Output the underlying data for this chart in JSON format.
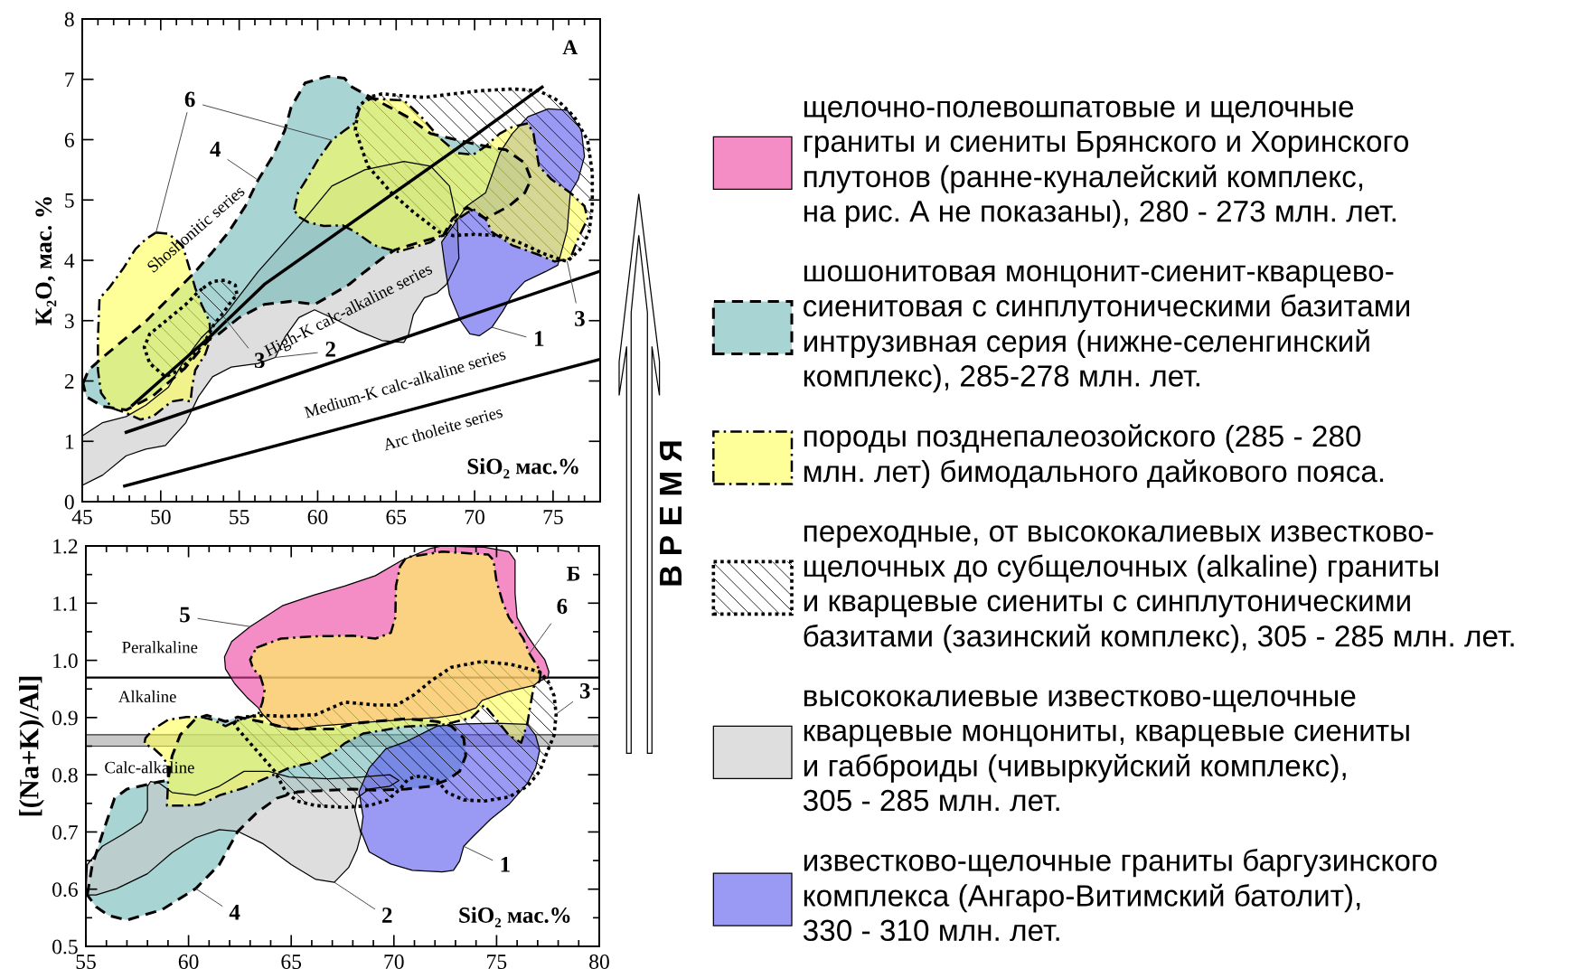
{
  "chart_data": [
    {
      "type": "area",
      "xlabel": "SiO₂ мас.%",
      "ylabel": "K₂O, мас. %",
      "xlim": [
        45,
        78
      ],
      "ylim": [
        0,
        8
      ],
      "xticks": [
        45,
        {
          "value": 46,
          "label": null
        },
        {
          "value": 47,
          "label": null
        },
        {
          "value": 48,
          "label": null
        },
        {
          "value": 49,
          "label": null
        },
        50,
        {
          "value": 51,
          "label": null
        },
        {
          "value": 52,
          "label": null
        },
        {
          "value": 53,
          "label": null
        },
        {
          "value": 54,
          "label": null
        },
        55,
        {
          "value": 56,
          "label": null
        },
        {
          "value": 57,
          "label": null
        },
        {
          "value": 58,
          "label": null
        },
        {
          "value": 59,
          "label": null
        },
        60,
        {
          "value": 61,
          "label": null
        },
        {
          "value": 62,
          "label": null
        },
        {
          "value": 63,
          "label": null
        },
        {
          "value": 64,
          "label": null
        },
        65,
        {
          "value": 66,
          "label": null
        },
        {
          "value": 67,
          "label": null
        },
        {
          "value": 68,
          "label": null
        },
        {
          "value": 69,
          "label": null
        },
        70,
        {
          "value": 71,
          "label": null
        },
        {
          "value": 72,
          "label": null
        },
        {
          "value": 73,
          "label": null
        },
        {
          "value": 74,
          "label": null
        },
        75,
        {
          "value": 76,
          "label": null
        },
        {
          "value": 77,
          "label": null
        }
      ],
      "yticks": [
        0,
        1,
        2,
        3,
        4,
        5,
        6,
        7,
        8
      ],
      "series": [
        {
          "color": "#dedede",
          "line_style": "solid",
          "x": [
            45,
            46.3,
            47.8,
            49.05,
            50.3,
            51.6,
            52.4,
            53.3,
            54.5,
            56.2,
            57.3,
            57.9,
            58.8,
            59.8,
            61.3,
            62.6,
            64.1,
            65.5,
            65.8,
            66.1,
            66.8,
            67.6,
            68.2,
            68.6,
            69.0,
            68.9,
            68.4,
            67.2,
            65.5,
            63.0,
            60.9,
            59.0,
            56.2,
            54.1,
            52.6,
            51.4,
            50.5,
            49.05,
            47.8,
            46.3,
            45
          ],
          "values": [
            0.27,
            0.44,
            0.76,
            0.87,
            0.93,
            1.31,
            1.74,
            2.07,
            2.23,
            2.29,
            2.39,
            2.72,
            3.05,
            3.18,
            3.0,
            2.83,
            2.67,
            2.64,
            2.78,
            3.1,
            3.38,
            3.46,
            3.6,
            3.81,
            4.03,
            4.63,
            5.23,
            5.56,
            5.64,
            5.5,
            5.23,
            4.63,
            3.81,
            3.1,
            2.72,
            2.3,
            1.9,
            1.6,
            1.41,
            1.31,
            1.09
          ]
        },
        {
          "type": "line",
          "color": "#000000",
          "line_style": "solid",
          "x": [
            48.2,
            53.2,
            56.6,
            69.5,
            74.3
          ],
          "values": [
            1.6,
            2.75,
            3.6,
            5.97,
            6.87
          ]
        },
        {
          "type": "line",
          "color": "#000000",
          "line_style": "solid",
          "x": [
            47.8,
            78
          ],
          "values": [
            1.15,
            3.82
          ]
        },
        {
          "type": "line",
          "color": "#000000",
          "line_style": "solid",
          "x": [
            47.7,
            78
          ],
          "values": [
            0.26,
            2.36
          ]
        },
        {
          "color": "#a8d4d4",
          "line_style": "dashed",
          "x": [
            45.05,
            45.4,
            46.3,
            49.1,
            52.2,
            53.3,
            54.3,
            55.4,
            56.2,
            57.1,
            57.9,
            58.3,
            59.2,
            60.65,
            61.7,
            62.2,
            63.2,
            64.5,
            65.7,
            67.2,
            69.3,
            70.7,
            72.0,
            73.2,
            73.6,
            73.2,
            72.2,
            70.7,
            69.5,
            68.6,
            68.0,
            66.5,
            64.9,
            64.1,
            63.0,
            62.0,
            60.9,
            59.8,
            58.3,
            56.6,
            55.0,
            53.7,
            53.2,
            51.5,
            49.5,
            47.8,
            46.3,
            45.25
          ],
          "values": [
            1.96,
            2.18,
            2.39,
            3.0,
            3.81,
            4.14,
            4.46,
            4.9,
            5.33,
            5.71,
            6.15,
            6.53,
            6.94,
            7.05,
            7.02,
            6.87,
            6.73,
            6.55,
            6.38,
            6.1,
            5.97,
            5.89,
            5.83,
            5.61,
            5.34,
            5.12,
            4.9,
            4.69,
            4.88,
            4.69,
            4.41,
            4.3,
            4.17,
            4.03,
            3.81,
            3.6,
            3.43,
            3.27,
            3.32,
            3.27,
            3.05,
            2.78,
            2.72,
            2.2,
            1.75,
            1.52,
            1.58,
            1.74
          ]
        },
        {
          "color": "#9a9af5",
          "line_style": "solid",
          "x": [
            72.4,
            73.4,
            74.7,
            75.9,
            76.8,
            77.0,
            76.6,
            76.1,
            75.9,
            75.3,
            74.5,
            73.2,
            72.4,
            71.8,
            71.1,
            70.3,
            69.7,
            69.1,
            68.4,
            68.1,
            67.9,
            68.65,
            69.5,
            70.7,
            71.6
          ],
          "values": [
            6.1,
            6.38,
            6.51,
            6.49,
            6.16,
            5.72,
            5.34,
            5.12,
            4.5,
            3.92,
            3.81,
            3.65,
            3.43,
            3.16,
            2.89,
            2.75,
            2.78,
            3.0,
            3.43,
            3.92,
            4.3,
            4.58,
            4.9,
            5.12,
            5.78
          ]
        },
        {
          "color": "#000000",
          "line_style": "dotted",
          "x": [
            52.7,
            53.3,
            54.1,
            54.75,
            54.85,
            54.5,
            53.9,
            53.4,
            52.85,
            52.0,
            51.2,
            50.3,
            49.3,
            48.95,
            49.3,
            50.3,
            51.6,
            52.4
          ],
          "values": [
            3.54,
            3.65,
            3.67,
            3.59,
            3.43,
            3.32,
            3.1,
            2.94,
            2.67,
            2.39,
            2.18,
            2.07,
            2.29,
            2.56,
            2.78,
            2.99,
            3.27,
            3.48
          ]
        },
        {
          "color": "#000000",
          "line_style": "dotted",
          "x": [
            62.4,
            62.6,
            63.2,
            64.1,
            65.3,
            66.8,
            68.65,
            70.3,
            72.4,
            74.1,
            75.3,
            76.35,
            77.2,
            77.5,
            77.5,
            77.3,
            76.8,
            75.9,
            74.5,
            72.8,
            71.6,
            70.0,
            68.65,
            67.75,
            66.1,
            64.7,
            63.2
          ],
          "values": [
            6.16,
            6.54,
            6.7,
            6.76,
            6.73,
            6.7,
            6.76,
            6.81,
            6.84,
            6.81,
            6.65,
            6.38,
            5.99,
            5.45,
            4.9,
            4.47,
            4.2,
            3.98,
            4.1,
            4.3,
            4.41,
            4.43,
            4.41,
            4.47,
            4.8,
            5.12,
            5.56
          ]
        },
        {
          "color": "#ffff99",
          "line_style": "dashdot",
          "x": [
            49.7,
            50.5,
            51.4,
            51.9,
            52.2,
            52.6,
            53.1,
            53.2,
            52.85,
            52.2,
            52.0,
            51.9,
            51.4,
            50.7,
            50.3,
            49.5,
            48.7,
            47.8,
            46.9,
            46.2,
            46.0,
            46.0,
            46.1,
            46.7,
            47.6,
            48.4,
            49.05
          ],
          "values": [
            4.46,
            4.44,
            4.24,
            3.81,
            3.54,
            3.27,
            2.99,
            2.72,
            2.45,
            2.18,
            1.9,
            1.66,
            1.69,
            1.66,
            1.58,
            1.41,
            1.36,
            1.47,
            1.55,
            1.8,
            2.18,
            2.72,
            3.37,
            3.54,
            3.86,
            4.19,
            4.35
          ]
        },
        {
          "color": "#ffff99",
          "line_style": "dashdot",
          "x": [
            58.5,
            58.75,
            59.4,
            60.0,
            60.9,
            61.7,
            62.3,
            62.8,
            63.4,
            65.5,
            66.6,
            67.8,
            68.4,
            68.85,
            69.9,
            70.7,
            71.6,
            72.4,
            73.4,
            73.75,
            74.1,
            74.9,
            76.1,
            77.0,
            77.2,
            76.6,
            76.1,
            75.1,
            74.1,
            72.4,
            71.1,
            70.7,
            69.9,
            68.6,
            68.2,
            67.2,
            65.1,
            63.6,
            62.4,
            61.6,
            60.4,
            59.4,
            58.75
          ],
          "values": [
            4.84,
            5.12,
            5.39,
            5.66,
            5.99,
            6.15,
            6.26,
            6.59,
            6.68,
            6.65,
            6.38,
            6.02,
            5.89,
            5.78,
            5.75,
            5.89,
            6.1,
            6.21,
            6.27,
            6.1,
            5.56,
            5.34,
            5.12,
            4.9,
            4.69,
            4.36,
            4.03,
            3.98,
            4.09,
            4.25,
            4.47,
            4.69,
            4.85,
            4.63,
            4.47,
            4.3,
            4.14,
            4.25,
            4.47,
            4.58,
            4.57,
            4.63,
            4.73
          ]
        }
      ],
      "annotations": [
        "А",
        "Shoshonitic series",
        "High-K calc-alkaline series",
        "Medium-K calc-alkaline series",
        "Arc tholeite series",
        {
          "text": "6",
          "x": 60.9,
          "y": 5.99
        },
        {
          "text": "4",
          "x": 56.2,
          "y": 5.33
        },
        {
          "text": "3",
          "x": 53.9,
          "y": 3.1
        },
        {
          "text": "2",
          "x": 57.3,
          "y": 2.39
        },
        {
          "text": "1",
          "x": 71.1,
          "y": 2.89
        },
        {
          "text": "3",
          "x": 75.9,
          "y": 3.98
        }
      ]
    },
    {
      "type": "area",
      "xlabel": "SiO₂ мас.%",
      "ylabel": "[(Na+K)/Al]",
      "xlim": [
        55,
        80
      ],
      "ylim": [
        0.5,
        1.2
      ],
      "xticks": [
        55,
        {
          "value": 56,
          "label": null
        },
        {
          "value": 57,
          "label": null
        },
        {
          "value": 58,
          "label": null
        },
        {
          "value": 59,
          "label": null
        },
        60,
        {
          "value": 61,
          "label": null
        },
        {
          "value": 62,
          "label": null
        },
        {
          "value": 63,
          "label": null
        },
        {
          "value": 64,
          "label": null
        },
        65,
        {
          "value": 66,
          "label": null
        },
        {
          "value": 67,
          "label": null
        },
        {
          "value": 68,
          "label": null
        },
        {
          "value": 69,
          "label": null
        },
        70,
        {
          "value": 71,
          "label": null
        },
        {
          "value": 72,
          "label": null
        },
        {
          "value": 73,
          "label": null
        },
        {
          "value": 74,
          "label": null
        },
        75,
        {
          "value": 76,
          "label": null
        },
        {
          "value": 77,
          "label": null
        },
        {
          "value": 78,
          "label": null
        },
        {
          "value": 79,
          "label": null
        },
        80
      ],
      "yticks": [
        0.5,
        {
          "value": 0.55,
          "label": null
        },
        0.6,
        {
          "value": 0.65,
          "label": null
        },
        0.7,
        {
          "value": 0.75,
          "label": null
        },
        0.8,
        {
          "value": 0.85,
          "label": null
        },
        0.9,
        {
          "value": 0.95,
          "label": null
        },
        {
          "value": 1,
          "label": "1.0"
        },
        {
          "value": 1.05,
          "label": null
        },
        1.1,
        {
          "value": 1.15,
          "label": null
        },
        1.2
      ],
      "ref_lines": [
        {
          "axis": "y",
          "value": 0.97,
          "color": "#000000"
        }
      ],
      "bands": [
        {
          "axis": "y",
          "from": 0.85,
          "to": 0.87,
          "color": "#c8c8c8"
        }
      ],
      "legend": "right",
      "series": [
        {
          "name": "шошонитовая монцонит-сиенит-кварцево-\nсиенитовая с синплутоническими базитами\nинтрузивная серия (нижне-селенгинский\nкомплекс), 285-278 млн. лет.",
          "color": "#a8d4d4",
          "line_style": "dashed",
          "x": [
            55.07,
            55.3,
            55.8,
            56.4,
            57.0,
            58.0,
            58.6,
            59.0,
            59.2,
            59.6,
            60.35,
            60.9,
            61.8,
            62.4,
            63.5,
            65.0,
            67.1,
            68.1,
            70.6,
            72.1,
            72.8,
            73.4,
            73.5,
            73.2,
            72.6,
            71.8,
            70.6,
            69.1,
            68.0,
            65.3,
            64.3,
            63.3,
            62.4,
            61.5,
            60.35,
            58.7,
            57.0,
            56.1,
            55.5
          ],
          "values": [
            0.59,
            0.64,
            0.696,
            0.759,
            0.775,
            0.783,
            0.788,
            0.79,
            0.833,
            0.87,
            0.898,
            0.904,
            0.893,
            0.901,
            0.893,
            0.88,
            0.88,
            0.89,
            0.898,
            0.893,
            0.885,
            0.864,
            0.833,
            0.806,
            0.791,
            0.78,
            0.775,
            0.773,
            0.775,
            0.77,
            0.759,
            0.733,
            0.701,
            0.643,
            0.601,
            0.564,
            0.546,
            0.554,
            0.569
          ]
        },
        {
          "name": "высококалиевые известково-щелочные\nкварцевые монцониты, кварцевые сиениты\nи габброиды (чивыркуйский комплекс),\n305 - 285 млн. лет.",
          "color": "#dedede",
          "line_style": "solid",
          "x": [
            55.0,
            55.5,
            56.5,
            58.0,
            59.2,
            60.35,
            61.5,
            62.4,
            63.6,
            65.0,
            66.2,
            67.1,
            67.8,
            68.2,
            68.4,
            68.1,
            68.2,
            68.8,
            69.8,
            70.25,
            69.8,
            68.0,
            66.8,
            64.9,
            63.9,
            62.7,
            61.5,
            60.35,
            59.2,
            58.6,
            58.15,
            58.0,
            58.0,
            57.7,
            56.8,
            55.8,
            55.07
          ],
          "values": [
            0.59,
            0.59,
            0.601,
            0.627,
            0.664,
            0.69,
            0.704,
            0.701,
            0.68,
            0.643,
            0.617,
            0.612,
            0.638,
            0.669,
            0.696,
            0.738,
            0.759,
            0.775,
            0.78,
            0.79,
            0.8,
            0.795,
            0.793,
            0.796,
            0.806,
            0.806,
            0.78,
            0.764,
            0.769,
            0.785,
            0.788,
            0.78,
            0.738,
            0.717,
            0.696,
            0.675,
            0.643
          ]
        },
        {
          "name": "известково-щелочные граниты баргузинского\nкомплекса (Ангаро-Витимский батолит),\n330 - 310 млн. лет.",
          "color": "#9a9af5",
          "line_style": "solid",
          "x": [
            68.8,
            69.6,
            70.6,
            72.1,
            73.5,
            75.0,
            76.5,
            76.9,
            77.1,
            76.9,
            76.5,
            75.6,
            74.7,
            73.8,
            73.4,
            73.2,
            72.9,
            72.35,
            70.9,
            69.85,
            68.8,
            68.4,
            68.5,
            68.3
          ],
          "values": [
            0.812,
            0.845,
            0.858,
            0.885,
            0.889,
            0.89,
            0.888,
            0.869,
            0.843,
            0.812,
            0.785,
            0.748,
            0.722,
            0.69,
            0.675,
            0.649,
            0.633,
            0.63,
            0.633,
            0.644,
            0.665,
            0.701,
            0.727,
            0.77
          ]
        },
        {
          "name": "щелочно-полевошпатовые и щелочные\nграниты и сиениты Брянского и Хоринского\nплутонов (ранне-куналейский комплекс,\nна рис. А не показаны), 280 - 273 млн. лет.",
          "color": "#f48cc6",
          "line_style": "solid",
          "x": [
            63.0,
            64.6,
            66.1,
            67.6,
            69.1,
            70.4,
            71.8,
            72.35,
            74.4,
            75.6,
            75.9,
            75.9,
            76.0,
            76.5,
            76.9,
            77.35,
            77.55,
            77.5,
            77.1,
            76.8,
            75.5,
            74.3,
            74.0,
            73.2,
            72.1,
            69.1,
            66.2,
            65.3,
            64.2,
            63.6,
            63.4,
            62.85,
            62.25,
            61.8,
            61.75,
            62.1
          ],
          "values": [
            1.059,
            1.096,
            1.114,
            1.13,
            1.148,
            1.175,
            1.196,
            1.2,
            1.198,
            1.19,
            1.175,
            1.117,
            1.075,
            1.043,
            1.022,
            1.001,
            0.98,
            0.97,
            0.964,
            0.956,
            0.945,
            0.93,
            0.917,
            0.906,
            0.9,
            0.893,
            0.885,
            0.88,
            0.885,
            0.906,
            0.917,
            0.935,
            0.959,
            0.985,
            1.006,
            1.033
          ]
        },
        {
          "name": "переходные, от высококалиевых известково-\nщелочных до субщелочных (alkaline) граниты\nи кварцевые сиениты с синплутоническими\nбазитами (зазинский комплекс), 305 - 285 млн. лет.",
          "color": "#000000",
          "line_style": "dotted",
          "x": [
            62.2,
            62.7,
            63.7,
            64.6,
            66.2,
            67.6,
            69.1,
            70.15,
            71.0,
            71.8,
            72.8,
            74.3,
            75.7,
            77.1,
            77.5,
            77.8,
            77.9,
            77.8,
            77.5,
            77.1,
            76.5,
            75.6,
            74.4,
            73.4,
            72.6,
            72.1,
            71.3,
            70.7,
            70.3,
            69.7,
            68.8,
            67.6,
            66.2,
            65.3,
            64.75,
            64.2,
            63.3,
            62.4
          ],
          "values": [
            0.891,
            0.901,
            0.904,
            0.902,
            0.905,
            0.927,
            0.922,
            0.922,
            0.94,
            0.964,
            0.988,
            0.998,
            0.993,
            0.98,
            0.964,
            0.938,
            0.906,
            0.869,
            0.843,
            0.806,
            0.78,
            0.761,
            0.754,
            0.756,
            0.769,
            0.791,
            0.798,
            0.793,
            0.775,
            0.756,
            0.746,
            0.743,
            0.746,
            0.754,
            0.769,
            0.806,
            0.843,
            0.88
          ]
        },
        {
          "name": "породы позднепалеозойского (285 - 280\nмлн. лет) бимодального дайкового пояса.",
          "color": "#ffff99",
          "line_style": "dashdot",
          "x": [
            63.3,
            64.5,
            66.1,
            68.0,
            69.1,
            69.85,
            70.07,
            70.1,
            70.3,
            70.6,
            72.35,
            74.6,
            74.85,
            75.0,
            75.3,
            75.6,
            76.3,
            76.6,
            77.15,
            77.1,
            76.8,
            76.5,
            76.2,
            75.6,
            75.0,
            74.4,
            73.8,
            72.5,
            70.5,
            68.5,
            67.6,
            67.2,
            66.1,
            64.9,
            63.9,
            62.7,
            61.5,
            60.6,
            59.8,
            58.95,
            59.0,
            59.0,
            58.7,
            58.3,
            57.85,
            57.9,
            58.3,
            59.0,
            59.9,
            60.6,
            61.2,
            61.8,
            62.25,
            62.7,
            63.4,
            63.6,
            63.7,
            63.5,
            63.15,
            63.0
          ],
          "values": [
            1.022,
            1.038,
            1.042,
            1.043,
            1.038,
            1.048,
            1.075,
            1.13,
            1.164,
            1.18,
            1.19,
            1.185,
            1.175,
            1.138,
            1.101,
            1.075,
            1.038,
            1.012,
            0.98,
            0.964,
            0.953,
            0.89,
            0.856,
            0.869,
            0.896,
            0.922,
            0.9,
            0.888,
            0.884,
            0.872,
            0.855,
            0.843,
            0.822,
            0.812,
            0.796,
            0.777,
            0.764,
            0.748,
            0.746,
            0.746,
            0.785,
            0.817,
            0.833,
            0.846,
            0.854,
            0.864,
            0.88,
            0.896,
            0.901,
            0.901,
            0.896,
            0.885,
            0.893,
            0.898,
            0.906,
            0.927,
            0.948,
            0.972,
            0.985,
            1.001
          ]
        }
      ],
      "annotations": [
        "Б",
        "Peralkaline",
        "Alkaline",
        "Calc-alkaline",
        {
          "text": "5",
          "x": 63.0,
          "y": 1.059
        },
        {
          "text": "6",
          "x": 76.6,
          "y": 1.012
        },
        {
          "text": "3",
          "x": 77.9,
          "y": 0.906
        },
        {
          "text": "1",
          "x": 73.4,
          "y": 0.675
        },
        {
          "text": "4",
          "x": 60.35,
          "y": 0.601
        },
        {
          "text": "2",
          "x": 67.1,
          "y": 0.612
        },
        "В Р Е М Я"
      ]
    }
  ]
}
